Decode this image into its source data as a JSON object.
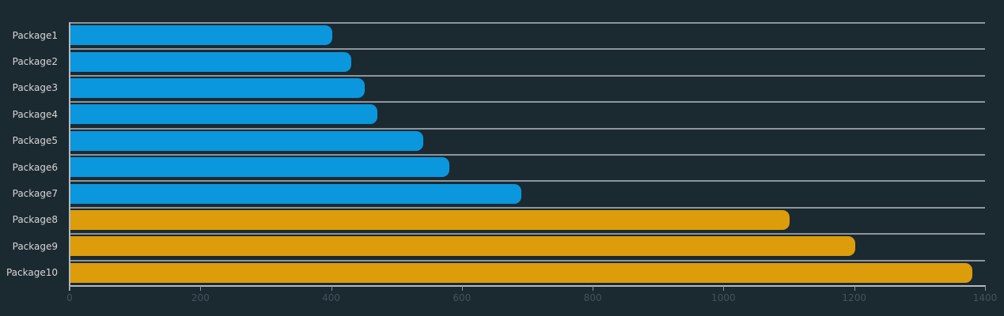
{
  "chart_data": {
    "type": "bar",
    "orientation": "horizontal",
    "title": "",
    "xlabel": "",
    "ylabel": "",
    "categories": [
      "Package1",
      "Package2",
      "Package3",
      "Package4",
      "Package5",
      "Package6",
      "Package7",
      "Package8",
      "Package9",
      "Package10"
    ],
    "values": [
      400,
      430,
      450,
      470,
      540,
      580,
      690,
      1100,
      1200,
      1380
    ],
    "bar_colors": [
      "#0a97dd",
      "#0a97dd",
      "#0a97dd",
      "#0a97dd",
      "#0a97dd",
      "#0a97dd",
      "#0a97dd",
      "#dd9c0a",
      "#dd9c0a",
      "#dd9c0a"
    ],
    "xlim": [
      0,
      1400
    ],
    "xticks": [
      0,
      200,
      400,
      600,
      800,
      1000,
      1200,
      1400
    ],
    "xtick_labels": [
      "0",
      "200",
      "400",
      "600",
      "800",
      "1000",
      "1200",
      "1400"
    ],
    "grid": "horizontal-lines-at-category-boundaries",
    "legend": "none"
  },
  "colors": {
    "background": "#1b2931",
    "bar_blue": "#0a97dd",
    "bar_orange": "#dd9c0a",
    "gridline": "#8d969d",
    "axis_line": "#b3bac0",
    "category_label": "#d6d6d6",
    "tick_label": "#45525c"
  }
}
